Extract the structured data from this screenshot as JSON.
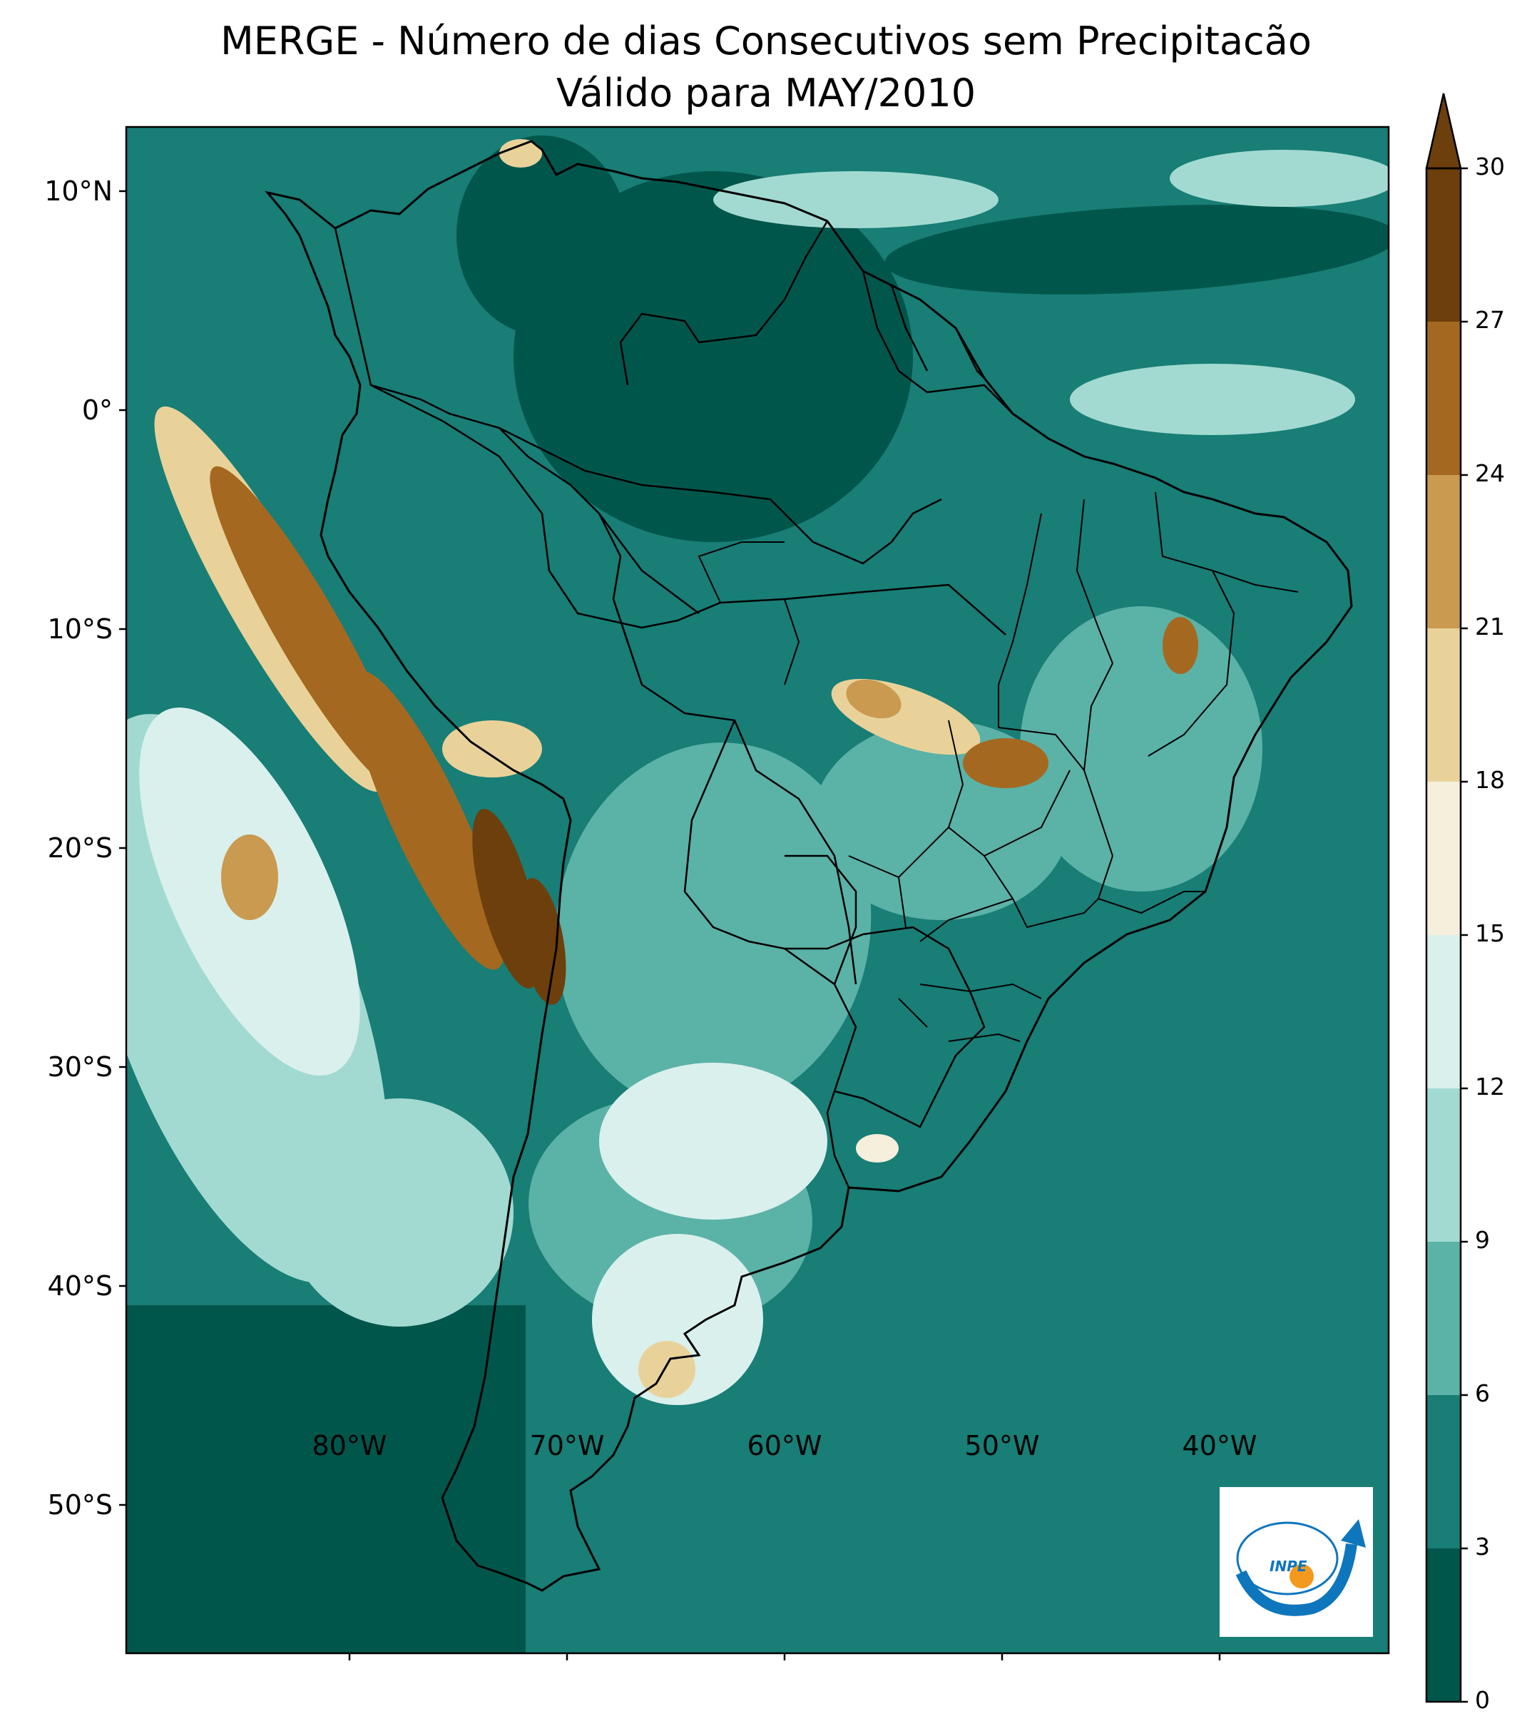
{
  "title": {
    "line1": "MERGE - Número de dias Consecutivos sem Precipitacão",
    "line2": "Válido para MAY/2010"
  },
  "map": {
    "type": "filled-contour",
    "longitude_ticks": [
      "80°W",
      "70°W",
      "60°W",
      "50°W",
      "40°W"
    ],
    "latitude_ticks": [
      "10°N",
      "0°",
      "10°S",
      "20°S",
      "30°S",
      "40°S",
      "50°S"
    ],
    "lon_range": [
      -89.5,
      -31.5
    ],
    "lat_range": [
      -56.5,
      13.5
    ]
  },
  "colorbar": {
    "ticks": [
      "0",
      "3",
      "6",
      "9",
      "12",
      "15",
      "18",
      "21",
      "24",
      "27",
      "30"
    ],
    "levels": [
      0,
      3,
      6,
      9,
      12,
      15,
      18,
      21,
      24,
      27,
      30
    ],
    "colors": [
      "#01564c",
      "#187e76",
      "#5bb2a7",
      "#a2dad2",
      "#daf0ed",
      "#f5efdc",
      "#e9d29a",
      "#c99a50",
      "#a56820",
      "#6d3f0c"
    ],
    "extend": "max"
  },
  "logo": {
    "text": "INPE",
    "colors": {
      "blue": "#0e76bd",
      "orange": "#f39a1e"
    }
  }
}
